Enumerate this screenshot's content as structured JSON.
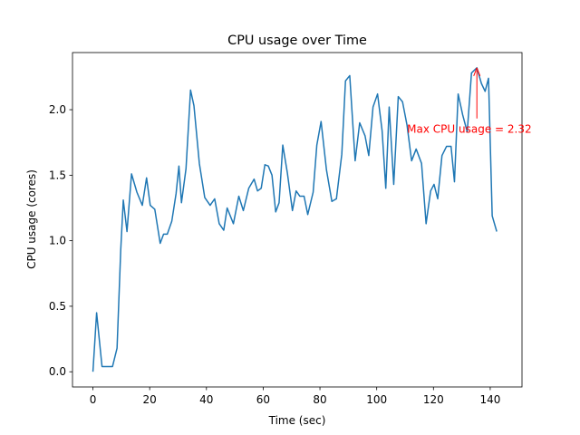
{
  "chart_data": {
    "type": "line",
    "title": "CPU usage over Time",
    "xlabel": "Time (sec)",
    "ylabel": "CPU usage (cores)",
    "xlim": [
      -7.2,
      151.2
    ],
    "ylim": [
      -0.116,
      2.436
    ],
    "xticks": [
      0,
      20,
      40,
      60,
      80,
      100,
      120,
      140
    ],
    "yticks": [
      {
        "value": 0,
        "label": "0.0"
      },
      0.5,
      {
        "value": 1,
        "label": "1.0"
      },
      1.5,
      {
        "value": 2,
        "label": "2.0"
      }
    ],
    "grid": false,
    "series": [
      {
        "color": "#1f77b4",
        "x": [
          0,
          1.3,
          3.2,
          5.4,
          6.9,
          8.5,
          9.8,
          10.7,
          12,
          13.6,
          15.5,
          17.4,
          18.9,
          20.2,
          21.8,
          23.7,
          24.9,
          26.2,
          27.8,
          29.3,
          30.3,
          31.2,
          32.8,
          34.4,
          35.6,
          37.5,
          39.4,
          41.3,
          42.9,
          44.5,
          46.1,
          47.3,
          49.5,
          51.4,
          53,
          54.9,
          56.8,
          58,
          59.3,
          60.6,
          61.8,
          63.1,
          64.4,
          65.6,
          66.9,
          68.5,
          70.3,
          71.6,
          72.9,
          74.4,
          75.7,
          77.6,
          78.9,
          80.4,
          82.3,
          84.2,
          85.8,
          87.7,
          89,
          90.5,
          92.4,
          94,
          95.9,
          97.2,
          98.7,
          100.3,
          101.9,
          103.2,
          104.4,
          106,
          107.6,
          109.1,
          110.7,
          112.3,
          113.9,
          115.8,
          117.4,
          119,
          120.2,
          121.5,
          123,
          124.6,
          126.2,
          127.4,
          128.7,
          130.3,
          131.9,
          133.4,
          135.3,
          136.9,
          138.2,
          139.4,
          140.7,
          142.3
        ],
        "values": [
          0,
          0.45,
          0.04,
          0.04,
          0.04,
          0.18,
          0.93,
          1.31,
          1.07,
          1.51,
          1.37,
          1.27,
          1.48,
          1.27,
          1.24,
          0.98,
          1.05,
          1.05,
          1.15,
          1.36,
          1.57,
          1.29,
          1.55,
          2.15,
          2.03,
          1.59,
          1.33,
          1.27,
          1.32,
          1.13,
          1.08,
          1.25,
          1.13,
          1.34,
          1.23,
          1.4,
          1.47,
          1.38,
          1.4,
          1.58,
          1.57,
          1.5,
          1.22,
          1.29,
          1.73,
          1.52,
          1.23,
          1.38,
          1.34,
          1.34,
          1.2,
          1.37,
          1.73,
          1.91,
          1.54,
          1.3,
          1.32,
          1.66,
          2.22,
          2.26,
          1.61,
          1.9,
          1.8,
          1.65,
          2.02,
          2.12,
          1.84,
          1.4,
          2.02,
          1.43,
          2.1,
          2.06,
          1.88,
          1.61,
          1.7,
          1.59,
          1.13,
          1.38,
          1.43,
          1.32,
          1.65,
          1.72,
          1.72,
          1.45,
          2.12,
          1.96,
          1.83,
          2.28,
          2.32,
          2.2,
          2.14,
          2.24,
          1.19,
          1.07
        ]
      }
    ],
    "annotation": {
      "text": "Max CPU usage = 2.32",
      "color": "#ff0000",
      "xy": [
        135.3,
        2.32
      ],
      "xytext": [
        110.7,
        1.85
      ]
    }
  }
}
